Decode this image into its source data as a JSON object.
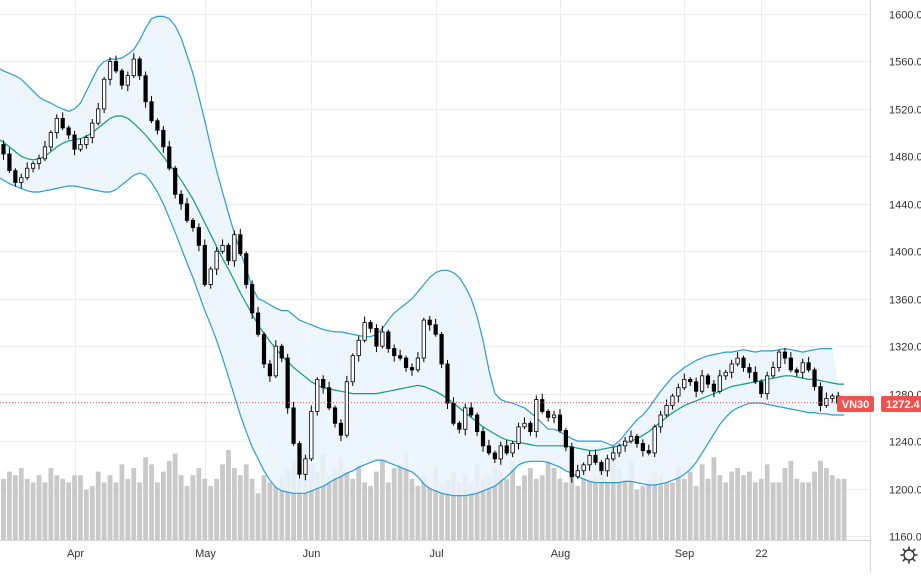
{
  "chart_data": {
    "type": "candlestick",
    "symbol": "VN30",
    "last_price_label": "1272.4",
    "last_price": 1272.4,
    "colors": {
      "up_body": "#ffffff",
      "down_body": "#000000",
      "wick": "#000000",
      "band": "#2e9bd6",
      "band_fill": "#eaf4fb",
      "middle": "#159a86",
      "volume": "#c9c9c9",
      "price_marker": "#ef5350",
      "grid": "#ececec",
      "axis_text": "#333333"
    },
    "y_axis": {
      "min": 1160,
      "max": 1600,
      "ticks": [
        "1600.0",
        "1560.0",
        "1520.0",
        "1480.0",
        "1440.0",
        "1400.0",
        "1360.0",
        "1320.0",
        "1280.0",
        "1240.0",
        "1200.0",
        "1160.0"
      ],
      "tick_values": [
        1600,
        1560,
        1520,
        1480,
        1440,
        1400,
        1360,
        1320,
        1280,
        1240,
        1200,
        1160
      ]
    },
    "x_axis": {
      "labels": [
        {
          "text": "Apr",
          "bar": 13
        },
        {
          "text": "May",
          "bar": 35
        },
        {
          "text": "Jun",
          "bar": 53
        },
        {
          "text": "Jul",
          "bar": 74
        },
        {
          "text": "Aug",
          "bar": 95
        },
        {
          "text": "Sep",
          "bar": 116
        },
        {
          "text": "22",
          "bar": 129
        }
      ]
    },
    "x_start_index": -1,
    "closes": [
      1490,
      1482,
      1468,
      1458,
      1462,
      1470,
      1474,
      1478,
      1488,
      1500,
      1512,
      1504,
      1498,
      1486,
      1490,
      1496,
      1508,
      1520,
      1545,
      1560,
      1552,
      1540,
      1548,
      1562,
      1548,
      1526,
      1510,
      1502,
      1488,
      1470,
      1448,
      1440,
      1426,
      1420,
      1405,
      1372,
      1385,
      1400,
      1405,
      1392,
      1414,
      1398,
      1372,
      1348,
      1330,
      1305,
      1295,
      1320,
      1310,
      1268,
      1238,
      1212,
      1225,
      1265,
      1292,
      1285,
      1268,
      1255,
      1245,
      1290,
      1312,
      1325,
      1340,
      1335,
      1320,
      1332,
      1318,
      1312,
      1310,
      1302,
      1300,
      1310,
      1342,
      1338,
      1330,
      1305,
      1272,
      1255,
      1250,
      1268,
      1262,
      1248,
      1236,
      1230,
      1225,
      1236,
      1230,
      1238,
      1252,
      1255,
      1248,
      1275,
      1265,
      1260,
      1262,
      1249,
      1235,
      1210,
      1215,
      1220,
      1228,
      1222,
      1215,
      1225,
      1230,
      1236,
      1240,
      1244,
      1238,
      1232,
      1230,
      1252,
      1262,
      1270,
      1278,
      1285,
      1292,
      1290,
      1282,
      1295,
      1288,
      1282,
      1295,
      1298,
      1305,
      1310,
      1302,
      1298,
      1290,
      1280,
      1295,
      1302,
      1315,
      1310,
      1300,
      1298,
      1306,
      1300,
      1286,
      1270,
      1276,
      1278,
      1272,
      1272.4
    ],
    "bb_upper": [
      1555,
      1552,
      1550,
      1548,
      1545,
      1540,
      1535,
      1530,
      1527,
      1525,
      1522,
      1520,
      1518,
      1520,
      1525,
      1535,
      1545,
      1555,
      1560,
      1562,
      1562,
      1563,
      1566,
      1570,
      1578,
      1588,
      1596,
      1598,
      1598,
      1596,
      1590,
      1580,
      1565,
      1550,
      1530,
      1510,
      1488,
      1468,
      1450,
      1432,
      1415,
      1400,
      1385,
      1370,
      1360,
      1358,
      1355,
      1352,
      1350,
      1350,
      1346,
      1342,
      1340,
      1338,
      1336,
      1334,
      1333,
      1332,
      1332,
      1331,
      1330,
      1329,
      1328,
      1328,
      1330,
      1335,
      1342,
      1348,
      1352,
      1356,
      1360,
      1366,
      1372,
      1378,
      1382,
      1384,
      1384,
      1382,
      1378,
      1370,
      1360,
      1345,
      1325,
      1300,
      1280,
      1275,
      1273,
      1272,
      1270,
      1268,
      1264,
      1260,
      1255,
      1250,
      1250,
      1248,
      1245,
      1242,
      1240,
      1240,
      1240,
      1240,
      1240,
      1238,
      1236,
      1240,
      1246,
      1252,
      1258,
      1262,
      1268,
      1275,
      1282,
      1288,
      1294,
      1298,
      1302,
      1305,
      1308,
      1310,
      1312,
      1313,
      1314,
      1315,
      1315,
      1316,
      1317,
      1316,
      1315,
      1316,
      1316,
      1316,
      1317,
      1318,
      1317,
      1316,
      1315,
      1316,
      1317,
      1318,
      1318,
      1318
    ],
    "bb_middle": [
      1495,
      1492,
      1488,
      1484,
      1480,
      1478,
      1477,
      1478,
      1480,
      1484,
      1488,
      1491,
      1493,
      1494,
      1495,
      1497,
      1500,
      1504,
      1508,
      1512,
      1514,
      1514,
      1512,
      1508,
      1503,
      1498,
      1492,
      1486,
      1480,
      1473,
      1467,
      1460,
      1452,
      1444,
      1434,
      1424,
      1414,
      1404,
      1394,
      1385,
      1375,
      1365,
      1356,
      1347,
      1338,
      1331,
      1324,
      1318,
      1312,
      1307,
      1302,
      1298,
      1294,
      1290,
      1287,
      1285,
      1284,
      1283,
      1282,
      1281,
      1280,
      1280,
      1280,
      1280,
      1280,
      1281,
      1282,
      1283,
      1284,
      1285,
      1286,
      1287,
      1286,
      1284,
      1282,
      1279,
      1276,
      1272,
      1268,
      1264,
      1260,
      1256,
      1252,
      1249,
      1246,
      1243,
      1241,
      1240,
      1239,
      1238,
      1237,
      1236,
      1236,
      1236,
      1236,
      1236,
      1236,
      1235,
      1234,
      1233,
      1232,
      1232,
      1233,
      1234,
      1235,
      1236,
      1238,
      1240,
      1242,
      1245,
      1248,
      1252,
      1256,
      1260,
      1264,
      1267,
      1270,
      1272,
      1274,
      1276,
      1278,
      1280,
      1282,
      1284,
      1286,
      1287,
      1288,
      1289,
      1290,
      1291,
      1292,
      1293,
      1294,
      1295,
      1295,
      1294,
      1293,
      1292,
      1292,
      1291,
      1290,
      1289,
      1288,
      1288
    ],
    "bb_lower": [
      1463,
      1460,
      1457,
      1455,
      1453,
      1451,
      1450,
      1450,
      1451,
      1452,
      1453,
      1454,
      1455,
      1455,
      1454,
      1453,
      1452,
      1451,
      1450,
      1450,
      1452,
      1456,
      1460,
      1464,
      1466,
      1464,
      1458,
      1450,
      1440,
      1428,
      1416,
      1403,
      1390,
      1378,
      1364,
      1350,
      1338,
      1325,
      1310,
      1294,
      1278,
      1262,
      1248,
      1235,
      1225,
      1215,
      1207,
      1201,
      1198,
      1197,
      1196,
      1196,
      1196,
      1198,
      1200,
      1202,
      1205,
      1208,
      1210,
      1213,
      1215,
      1218,
      1220,
      1222,
      1224,
      1224,
      1222,
      1220,
      1218,
      1216,
      1214,
      1210,
      1204,
      1200,
      1198,
      1196,
      1195,
      1194,
      1194,
      1194,
      1195,
      1196,
      1198,
      1200,
      1202,
      1206,
      1210,
      1215,
      1220,
      1222,
      1223,
      1223,
      1223,
      1222,
      1220,
      1218,
      1215,
      1213,
      1210,
      1208,
      1206,
      1205,
      1205,
      1205,
      1205,
      1205,
      1206,
      1206,
      1205,
      1204,
      1203,
      1203,
      1204,
      1205,
      1207,
      1209,
      1212,
      1216,
      1222,
      1230,
      1238,
      1246,
      1254,
      1260,
      1265,
      1268,
      1270,
      1272,
      1272,
      1272,
      1271,
      1270,
      1269,
      1268,
      1267,
      1266,
      1265,
      1264,
      1264,
      1263,
      1263,
      1262,
      1262,
      1262
    ],
    "volumes_pct": [
      22,
      17,
      19,
      18,
      20,
      17,
      16,
      18,
      16,
      20,
      18,
      17,
      16,
      18,
      18,
      14,
      15,
      19,
      16,
      18,
      16,
      21,
      17,
      20,
      16,
      23,
      21,
      16,
      19,
      22,
      24,
      18,
      15,
      18,
      20,
      17,
      15,
      17,
      21,
      25,
      20,
      18,
      21,
      17,
      13,
      18,
      16,
      15,
      18,
      20,
      22,
      17,
      26,
      21,
      19,
      24,
      18,
      20,
      23,
      19,
      17,
      21,
      16,
      15,
      19,
      22,
      16,
      20,
      21,
      24,
      17,
      15,
      18,
      15,
      20,
      16,
      17,
      19,
      16,
      18,
      16,
      21,
      17,
      18,
      20,
      19,
      17,
      22,
      15,
      18,
      20,
      17,
      18,
      22,
      20,
      17,
      16,
      21,
      15,
      20,
      17,
      18,
      19,
      16,
      23,
      20,
      17,
      22,
      14,
      15,
      17,
      19,
      18,
      16,
      16,
      20,
      17,
      19,
      15,
      21,
      17,
      23,
      18,
      16,
      19,
      20,
      18,
      19,
      16,
      17,
      21,
      16,
      16,
      20,
      22,
      17,
      16,
      16,
      19,
      22,
      20,
      18,
      17,
      17
    ]
  }
}
